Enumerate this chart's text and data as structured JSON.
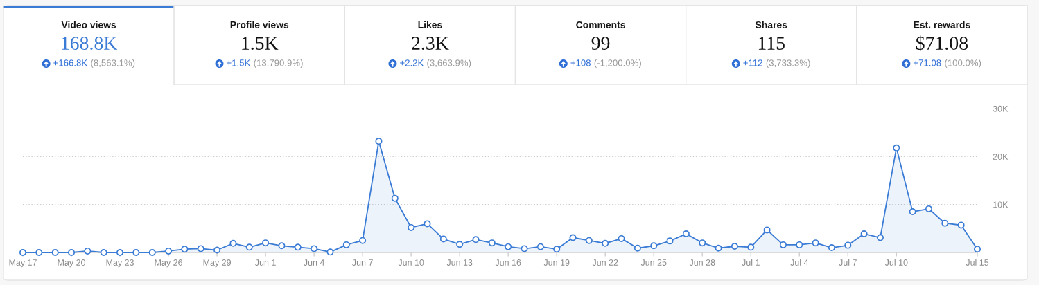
{
  "chart_data": [
    {
      "type": "other",
      "title": "Video views",
      "subtitle": "168.8K",
      "color": "#3a7bd5",
      "annotations": [
        "+166.8K",
        "(8,563.1%)"
      ]
    },
    {
      "type": "other",
      "title": "Profile views",
      "subtitle": "1.5K",
      "color": "#111111",
      "annotations": [
        "+1.5K",
        "(13,790.9%)"
      ]
    },
    {
      "type": "other",
      "title": "Likes",
      "subtitle": "2.3K",
      "color": "#111111",
      "annotations": [
        "+2.2K",
        "(3,663.9%)"
      ]
    },
    {
      "type": "other",
      "title": "Comments",
      "subtitle": "99",
      "color": "#111111",
      "annotations": [
        "+108",
        "(-1,200.0%)"
      ]
    },
    {
      "type": "other",
      "title": "Shares",
      "subtitle": "115",
      "color": "#111111",
      "annotations": [
        "+112",
        "(3,733.3%)"
      ]
    },
    {
      "type": "other",
      "title": "Est. rewards",
      "subtitle": "$71.08",
      "color": "#111111",
      "annotations": [
        "+71.08",
        "(100.0%)"
      ]
    },
    {
      "type": "area",
      "color": "#3a7bd5",
      "marker": "circle",
      "grid": "y",
      "ylim": [
        0,
        30000
      ],
      "yticks": [
        {
          "value": 10000,
          "label": "10K"
        },
        {
          "value": 20000,
          "label": "20K"
        },
        {
          "value": 30000,
          "label": "30K"
        }
      ],
      "categories": [
        "May 17",
        null,
        null,
        "May 20",
        null,
        null,
        "May 23",
        null,
        null,
        "May 26",
        null,
        null,
        "May 29",
        null,
        null,
        "Jun 1",
        null,
        null,
        "Jun 4",
        null,
        null,
        "Jun 7",
        null,
        null,
        "Jun 10",
        null,
        null,
        "Jun 13",
        null,
        null,
        "Jun 16",
        null,
        null,
        "Jun 19",
        null,
        null,
        "Jun 22",
        null,
        null,
        "Jun 25",
        null,
        null,
        "Jun 28",
        null,
        null,
        "Jul 1",
        null,
        null,
        "Jul 4",
        null,
        null,
        "Jul 7",
        null,
        null,
        "Jul 10",
        null,
        null,
        null,
        null,
        "Jul 15"
      ],
      "values": [
        0,
        0,
        0,
        0,
        300,
        0,
        0,
        0,
        0,
        300,
        700,
        800,
        500,
        1900,
        1100,
        2000,
        1400,
        1100,
        800,
        100,
        1600,
        2500,
        23200,
        11300,
        5200,
        6000,
        2800,
        1700,
        2700,
        2000,
        1200,
        800,
        1200,
        700,
        3100,
        2500,
        1900,
        2900,
        900,
        1400,
        2400,
        3900,
        2000,
        900,
        1300,
        1100,
        4700,
        1600,
        1600,
        2000,
        1000,
        1500,
        3900,
        3100,
        21800,
        8500,
        9100,
        6100,
        5700,
        700
      ]
    }
  ]
}
